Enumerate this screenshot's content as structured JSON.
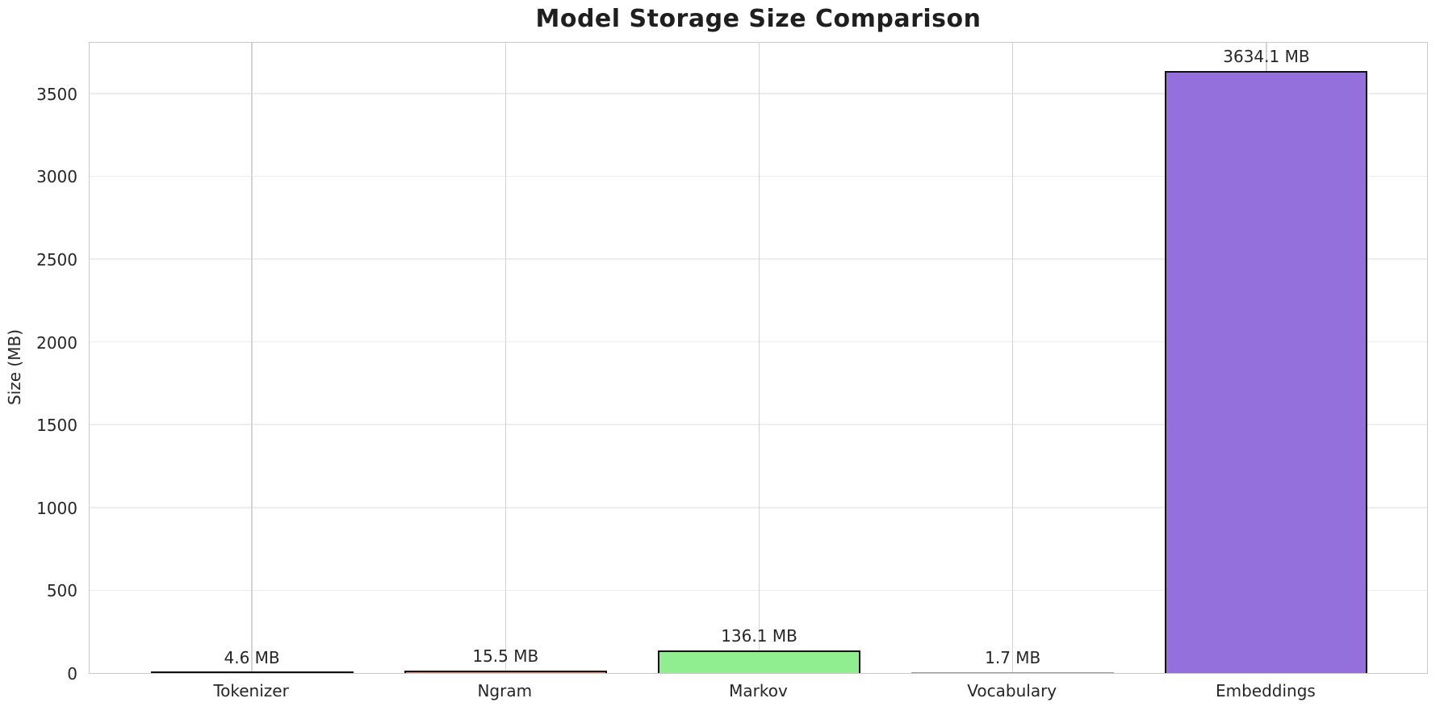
{
  "title": "Model Storage Size Comparison",
  "chart_data": {
    "type": "bar",
    "title": "Model Storage Size Comparison",
    "categories": [
      "Tokenizer",
      "Ngram",
      "Markov",
      "Vocabulary",
      "Embeddings"
    ],
    "values": [
      4.6,
      15.5,
      136.1,
      1.7,
      3634.1
    ],
    "bar_labels": [
      "4.6 MB",
      "15.5 MB",
      "136.1 MB",
      "1.7 MB",
      "3634.1 MB"
    ],
    "bar_colors": [
      "#87CEEB",
      "#F08080",
      "#90EE90",
      "#FFD700",
      "#9370DB"
    ],
    "bar_edge_color": "#111111",
    "unit": "MB",
    "xlabel": "",
    "ylabel": "Size (MB)",
    "ylim": [
      0,
      3816
    ],
    "yticks": [
      0,
      500,
      1000,
      1500,
      2000,
      2500,
      3000,
      3500
    ],
    "grid": "both",
    "legend": "none",
    "background_color": "#ffffff"
  }
}
